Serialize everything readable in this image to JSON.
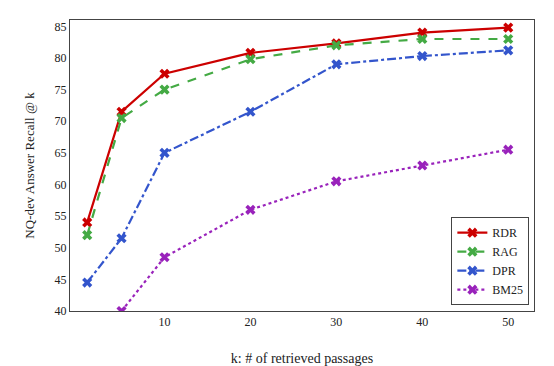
{
  "chart_data": {
    "type": "line",
    "xlabel": "k: # of retrieved passages",
    "ylabel": "NQ-dev Answer Recall @ k",
    "series": [
      {
        "name": "RDR",
        "color": "#cc0000",
        "line_style": "solid",
        "marker": "x",
        "x": [
          1,
          5,
          10,
          20,
          30,
          40,
          50
        ],
        "values": [
          54.0,
          71.5,
          77.5,
          80.8,
          82.3,
          84.0,
          84.8
        ]
      },
      {
        "name": "RAG",
        "color": "#44aa44",
        "line_style": "dashed",
        "marker": "x",
        "x": [
          1,
          5,
          10,
          20,
          30,
          40,
          50
        ],
        "values": [
          52.0,
          70.5,
          75.0,
          79.8,
          82.0,
          83.0,
          83.0
        ]
      },
      {
        "name": "DPR",
        "color": "#3355cc",
        "line_style": "dashdot",
        "marker": "x",
        "x": [
          1,
          5,
          10,
          20,
          30,
          40,
          50
        ],
        "values": [
          44.5,
          51.5,
          65.0,
          71.5,
          79.0,
          80.3,
          81.2
        ]
      },
      {
        "name": "BM25",
        "color": "#9922bb",
        "line_style": "dotted",
        "marker": "x",
        "x": [
          5,
          10,
          20,
          30,
          40,
          50
        ],
        "values": [
          40.0,
          48.5,
          56.0,
          60.5,
          63.0,
          65.5
        ]
      }
    ],
    "xlim": [
      -1,
      53
    ],
    "xticks": [
      10,
      20,
      30,
      40,
      50
    ],
    "ylim": [
      40,
      86
    ],
    "yticks": [
      40,
      45,
      50,
      55,
      60,
      65,
      70,
      75,
      80,
      85
    ],
    "grid": false,
    "legend": "lower right"
  }
}
